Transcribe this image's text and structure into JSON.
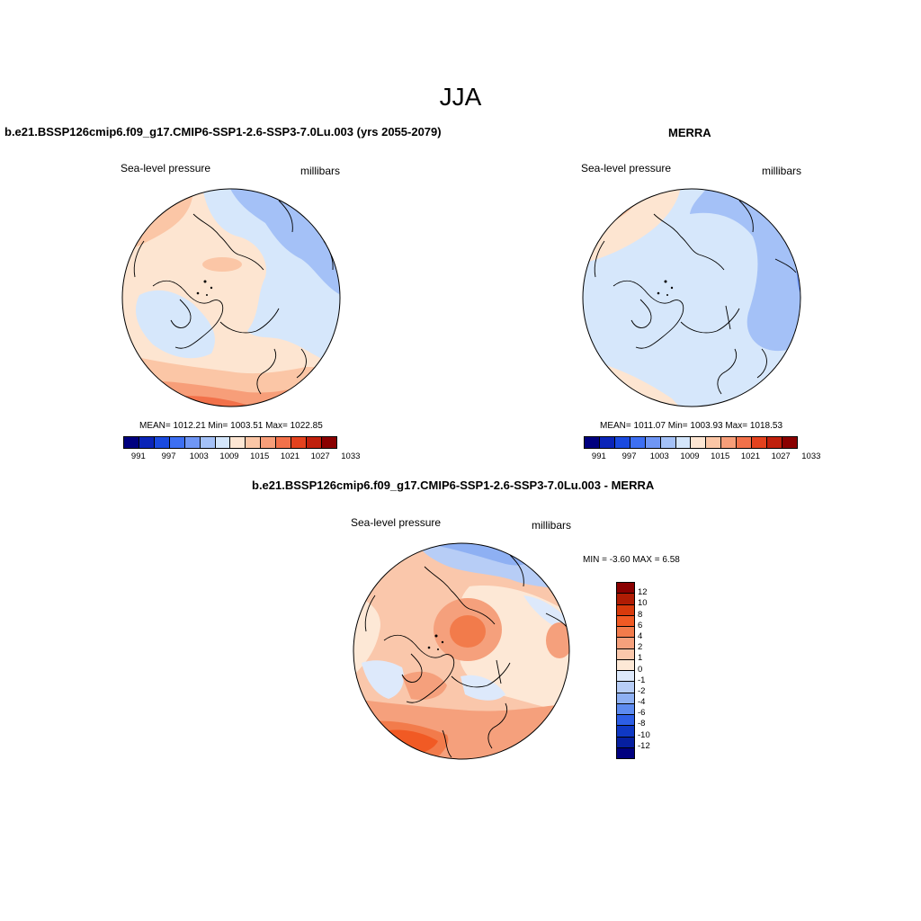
{
  "figure": {
    "season": "JJA",
    "colors": {
      "abs_scale": [
        "#00007f",
        "#0a24b8",
        "#1a4ae0",
        "#3d6ff2",
        "#6f96f5",
        "#a4c1f7",
        "#d4e6fb",
        "#fde6d3",
        "#fbc6a6",
        "#f79e79",
        "#f2714a",
        "#e4421e",
        "#c0200c",
        "#8a0000"
      ],
      "diff_scale": [
        "#8a0000",
        "#b01c04",
        "#d83a0c",
        "#f15a24",
        "#f27b4b",
        "#f5a07c",
        "#fac7ab",
        "#fde8d6",
        "#dde9fb",
        "#b7cdf6",
        "#8eb0f3",
        "#5d8bf0",
        "#2d5ee6",
        "#0f38c4",
        "#061fa0",
        "#00007f"
      ],
      "ocean_light_blue": "#d6e7fb",
      "land_peach": "#fde5d1"
    }
  },
  "panel_left": {
    "title": "b.e21.BSSP126cmip6.f09_g17.CMIP6-SSP1-2.6-SSP3-7.0Lu.003 (yrs 2055-2079)",
    "variable": "Sea-level pressure",
    "units": "millibars",
    "stats": "MEAN= 1012.21  Min= 1003.51  Max= 1022.85",
    "colorbar_ticks": [
      "991",
      "997",
      "1003",
      "1009",
      "1015",
      "1021",
      "1027",
      "1033"
    ]
  },
  "panel_right": {
    "title": "MERRA",
    "variable": "Sea-level pressure",
    "units": "millibars",
    "stats": "MEAN= 1011.07  Min= 1003.93  Max= 1018.53",
    "colorbar_ticks": [
      "991",
      "997",
      "1003",
      "1009",
      "1015",
      "1021",
      "1027",
      "1033"
    ]
  },
  "panel_diff": {
    "title": "b.e21.BSSP126cmip6.f09_g17.CMIP6-SSP1-2.6-SSP3-7.0Lu.003 - MERRA",
    "variable": "Sea-level pressure",
    "units": "millibars",
    "stats": "MIN =  -3.60 MAX =   6.58",
    "colorbar_ticks": [
      "12",
      "10",
      "8",
      "6",
      "4",
      "2",
      "1",
      "0",
      "-1",
      "-2",
      "-4",
      "-6",
      "-8",
      "-10",
      "-12"
    ]
  }
}
